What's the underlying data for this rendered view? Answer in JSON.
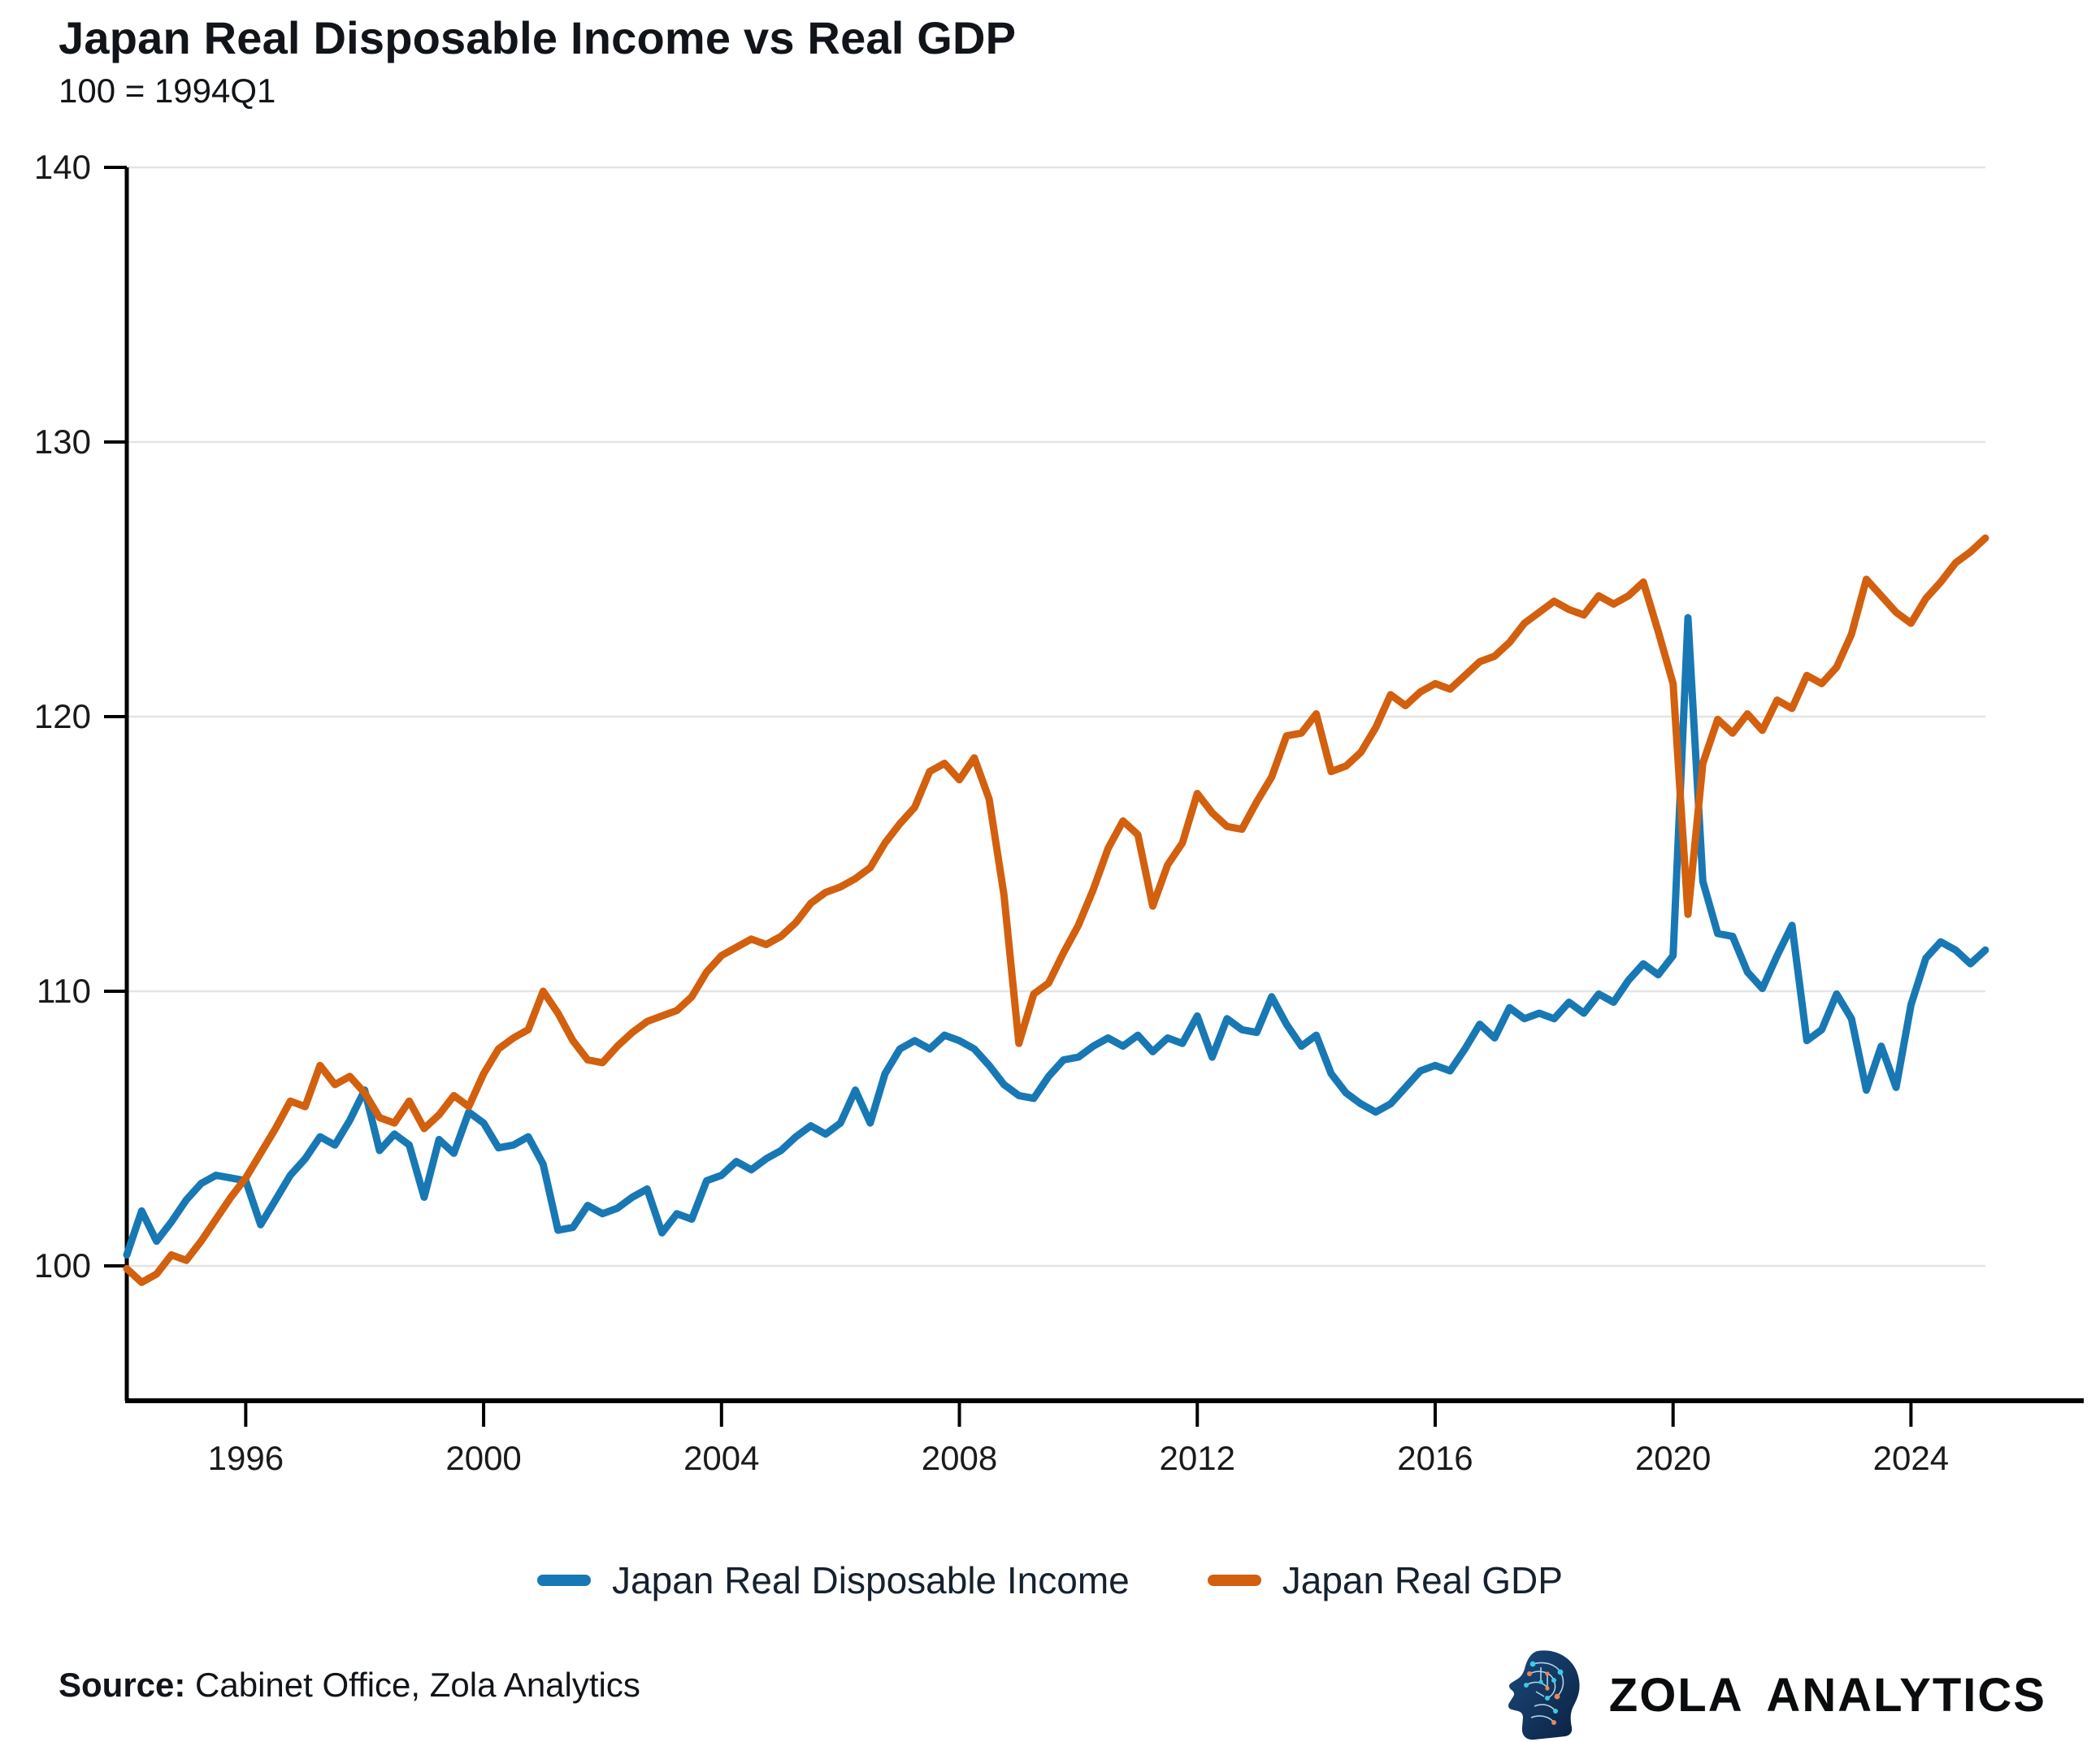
{
  "title": "Japan Real Disposable Income vs Real GDP",
  "subtitle": "100 = 1994Q1",
  "chart_data": {
    "type": "line",
    "frequency": "quarterly",
    "start_period": "1994Q1",
    "end_period": "2025Q2",
    "xlabel": "",
    "ylabel": "",
    "x_tick_labels": [
      "1996",
      "2000",
      "2004",
      "2008",
      "2012",
      "2016",
      "2020",
      "2024"
    ],
    "x_tick_years": [
      1996,
      2000,
      2004,
      2008,
      2012,
      2016,
      2020,
      2024
    ],
    "y_ticks": [
      100,
      110,
      120,
      130,
      140
    ],
    "ylim": [
      95.1,
      140
    ],
    "xlim_years": [
      1994.0,
      2025.25
    ],
    "grid": true,
    "legend_position": "bottom",
    "series": [
      {
        "name": "Japan Real Disposable Income",
        "color": "#1878b4",
        "values": [
          100.4,
          102.0,
          100.9,
          101.6,
          102.4,
          103.0,
          103.3,
          103.2,
          103.1,
          101.5,
          102.4,
          103.3,
          103.9,
          104.7,
          104.4,
          105.3,
          106.4,
          104.2,
          104.8,
          104.4,
          102.5,
          104.6,
          104.1,
          105.6,
          105.2,
          104.3,
          104.4,
          104.7,
          103.7,
          101.3,
          101.4,
          102.2,
          101.9,
          102.1,
          102.5,
          102.8,
          101.2,
          101.9,
          101.7,
          103.1,
          103.3,
          103.8,
          103.5,
          103.9,
          104.2,
          104.7,
          105.1,
          104.8,
          105.2,
          106.4,
          105.2,
          107.0,
          107.9,
          108.2,
          107.9,
          108.4,
          108.2,
          107.9,
          107.3,
          106.6,
          106.2,
          106.1,
          106.9,
          107.5,
          107.6,
          108.0,
          108.3,
          108.0,
          108.4,
          107.8,
          108.3,
          108.1,
          109.1,
          107.6,
          109.0,
          108.6,
          108.5,
          109.8,
          108.8,
          108.0,
          108.4,
          107.0,
          106.3,
          105.9,
          105.6,
          105.9,
          106.5,
          107.1,
          107.3,
          107.1,
          107.9,
          108.8,
          108.3,
          109.4,
          109.0,
          109.2,
          109.0,
          109.6,
          109.2,
          109.9,
          109.6,
          110.4,
          111.0,
          110.6,
          111.3,
          123.6,
          114.0,
          112.1,
          112.0,
          110.7,
          110.1,
          111.3,
          112.4,
          108.2,
          108.6,
          109.9,
          109.0,
          106.4,
          108.0,
          106.5,
          109.5,
          111.2,
          111.8,
          111.5,
          111.0,
          111.5
        ]
      },
      {
        "name": "Japan Real GDP",
        "color": "#d2600e",
        "values": [
          99.9,
          99.4,
          99.7,
          100.4,
          100.2,
          100.9,
          101.7,
          102.5,
          103.2,
          104.1,
          105.0,
          106.0,
          105.8,
          107.3,
          106.6,
          106.9,
          106.3,
          105.4,
          105.2,
          106.0,
          105.0,
          105.5,
          106.2,
          105.8,
          107.0,
          107.9,
          108.3,
          108.6,
          110.0,
          109.2,
          108.2,
          107.5,
          107.4,
          108.0,
          108.5,
          108.9,
          109.1,
          109.3,
          109.8,
          110.7,
          111.3,
          111.6,
          111.9,
          111.7,
          112.0,
          112.5,
          113.2,
          113.6,
          113.8,
          114.1,
          114.5,
          115.4,
          116.1,
          116.7,
          118.0,
          118.3,
          117.7,
          118.5,
          117.0,
          113.5,
          108.1,
          109.9,
          110.3,
          111.4,
          112.4,
          113.7,
          115.2,
          116.2,
          115.7,
          113.1,
          114.6,
          115.4,
          117.2,
          116.5,
          116.0,
          115.9,
          116.9,
          117.8,
          119.3,
          119.4,
          120.1,
          118.0,
          118.2,
          118.7,
          119.6,
          120.8,
          120.4,
          120.9,
          121.2,
          121.0,
          121.5,
          122.0,
          122.2,
          122.7,
          123.4,
          123.8,
          124.2,
          123.9,
          123.7,
          124.4,
          124.1,
          124.4,
          124.9,
          123.1,
          121.2,
          112.8,
          118.3,
          119.9,
          119.4,
          120.1,
          119.5,
          120.6,
          120.3,
          121.5,
          121.2,
          121.8,
          123.0,
          125.0,
          124.4,
          123.8,
          123.4,
          124.3,
          124.9,
          125.6,
          126.0,
          126.5
        ]
      }
    ]
  },
  "legend": {
    "items": [
      {
        "label": "Japan Real Disposable Income",
        "color": "#1878b4"
      },
      {
        "label": "Japan Real GDP",
        "color": "#d2600e"
      }
    ]
  },
  "footer": {
    "source_label": "Source:",
    "source_text": " Cabinet Office, Zola Analytics",
    "brand_name": "ZOLA ANALYTICS"
  },
  "colors": {
    "grid": "#e4e4e4",
    "axis": "#000000",
    "tick_label": "#1a1a1a",
    "legend_text": "#16212e",
    "logo_navy": "#123158",
    "logo_navy_dark": "#0b2140",
    "logo_cyan": "#3fc8e8",
    "logo_orange": "#e8875a"
  }
}
